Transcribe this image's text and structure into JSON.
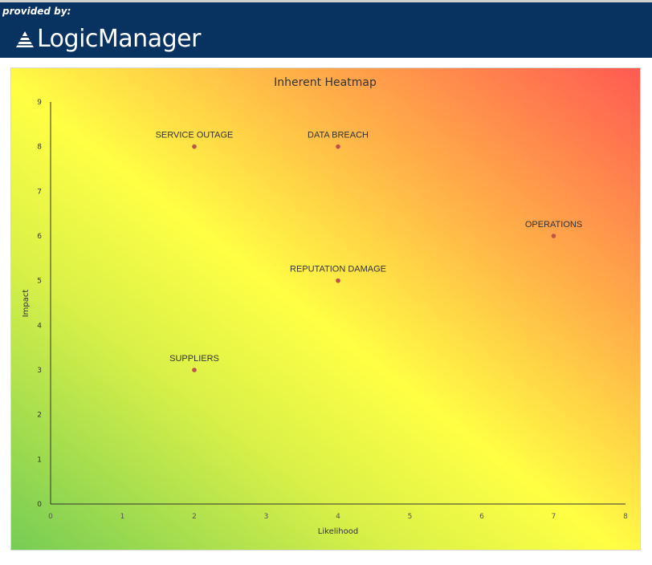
{
  "header": {
    "provided_by": "provided by:",
    "logo_text": "LogicManager"
  },
  "colors": {
    "header_bg": "#08325f",
    "point": "#c0504d",
    "gradient_low": "#76cc55",
    "gradient_mid": "#ffff44",
    "gradient_high": "#ff5a52"
  },
  "chart_data": {
    "type": "scatter",
    "title": "Inherent Heatmap",
    "xlabel": "Likelihood",
    "ylabel": "Impact",
    "xlim": [
      0,
      8
    ],
    "ylim": [
      0,
      9
    ],
    "xticks": [
      "0",
      "1",
      "2",
      "3",
      "4",
      "5",
      "6",
      "7",
      "8"
    ],
    "yticks": [
      "0",
      "1",
      "2",
      "3",
      "4",
      "5",
      "6",
      "7",
      "8",
      "9"
    ],
    "grid": false,
    "points": [
      {
        "label": "SERVICE OUTAGE",
        "x": 2,
        "y": 8
      },
      {
        "label": "DATA BREACH",
        "x": 4,
        "y": 8
      },
      {
        "label": "OPERATIONS",
        "x": 7,
        "y": 6
      },
      {
        "label": "REPUTATION DAMAGE",
        "x": 4,
        "y": 5
      },
      {
        "label": "SUPPLIERS",
        "x": 2,
        "y": 3
      }
    ]
  }
}
